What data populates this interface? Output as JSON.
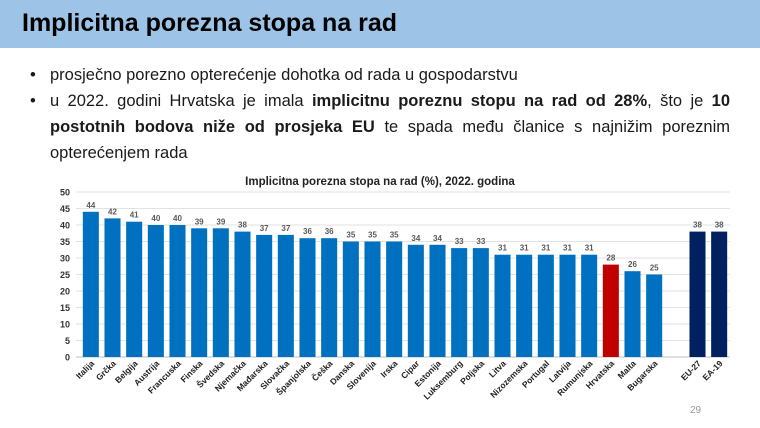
{
  "header": {
    "title": "Implicitna porezna stopa na rad"
  },
  "bullets": {
    "b1": "prosječno porezno opterećenje dohotka od rada u gospodarstvu",
    "b2_p1": "u 2022. godini Hrvatska je imala ",
    "b2_b1": "implicitnu poreznu stopu na rad od 28%",
    "b2_p2": ", što je ",
    "b2_b2": "10 postotnih bodova niže od prosjeka EU",
    "b2_p3": " te spada među članice s najnižim poreznim opterećenjem rada"
  },
  "chart_data": {
    "type": "bar",
    "title": "Implicitna porezna stopa na rad (%), 2022. godina",
    "xlabel": "",
    "ylabel": "",
    "ylim": [
      0,
      50
    ],
    "yticks": [
      0,
      5,
      10,
      15,
      20,
      25,
      30,
      35,
      40,
      45,
      50
    ],
    "grid": true,
    "categories": [
      "Italija",
      "Grčka",
      "Belgija",
      "Austrija",
      "Francuska",
      "Finska",
      "Švedska",
      "Njemačka",
      "Mađarska",
      "Slovačka",
      "Španjolska",
      "Češka",
      "Danska",
      "Slovenija",
      "Irska",
      "Cipar",
      "Estonija",
      "Luksemburg",
      "Poljska",
      "Litva",
      "Nizozemska",
      "Portugal",
      "Latvija",
      "Rumunjska",
      "Hrvatska",
      "Malta",
      "Bugarska",
      "EU-27",
      "EA-19"
    ],
    "values": [
      44,
      42,
      41,
      40,
      40,
      39,
      39,
      38,
      37,
      37,
      36,
      36,
      35,
      35,
      35,
      34,
      34,
      33,
      33,
      31,
      31,
      31,
      31,
      31,
      28,
      26,
      25,
      38,
      38
    ],
    "display_labels": [
      "44",
      "42",
      "41",
      "40",
      "40",
      "39",
      "39",
      "38",
      "37",
      "37",
      "36",
      "36",
      "35",
      "35",
      "35",
      "34",
      "34",
      "33",
      "33",
      "31",
      "31",
      "31",
      "31",
      "31",
      "28",
      "26",
      "25",
      "38",
      "38"
    ],
    "highlight": {
      "Hrvatska": "#c00000",
      "EU-27": "#002060",
      "EA-19": "#002060"
    },
    "colors": {
      "default": "#0070c0",
      "grid": "#d9d9d9",
      "axis": "#bfbfbf"
    }
  },
  "footer": {
    "page_number": "29"
  }
}
